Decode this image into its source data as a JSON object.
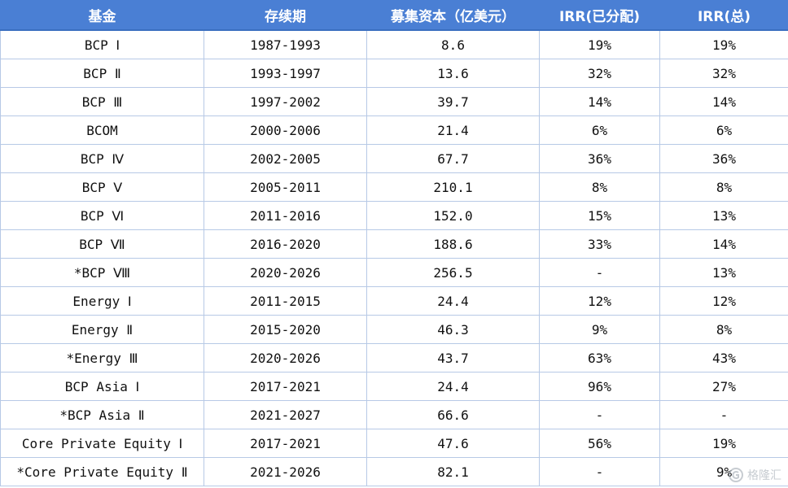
{
  "table": {
    "headers": [
      "基金",
      "存续期",
      "募集资本（亿美元）",
      "IRR(已分配)",
      "IRR(总)"
    ],
    "rows": [
      [
        "BCP Ⅰ",
        "1987-1993",
        "8.6",
        "19%",
        "19%"
      ],
      [
        "BCP Ⅱ",
        "1993-1997",
        "13.6",
        "32%",
        "32%"
      ],
      [
        "BCP Ⅲ",
        "1997-2002",
        "39.7",
        "14%",
        "14%"
      ],
      [
        "BCOM",
        "2000-2006",
        "21.4",
        "6%",
        "6%"
      ],
      [
        "BCP Ⅳ",
        "2002-2005",
        "67.7",
        "36%",
        "36%"
      ],
      [
        "BCP Ⅴ",
        "2005-2011",
        "210.1",
        "8%",
        "8%"
      ],
      [
        "BCP Ⅵ",
        "2011-2016",
        "152.0",
        "15%",
        "13%"
      ],
      [
        "BCP Ⅶ",
        "2016-2020",
        "188.6",
        "33%",
        "14%"
      ],
      [
        "*BCP Ⅷ",
        "2020-2026",
        "256.5",
        "-",
        "13%"
      ],
      [
        "Energy Ⅰ",
        "2011-2015",
        "24.4",
        "12%",
        "12%"
      ],
      [
        "Energy Ⅱ",
        "2015-2020",
        "46.3",
        "9%",
        "8%"
      ],
      [
        "*Energy Ⅲ",
        "2020-2026",
        "43.7",
        "63%",
        "43%"
      ],
      [
        "BCP Asia Ⅰ",
        "2017-2021",
        "24.4",
        "96%",
        "27%"
      ],
      [
        "*BCP Asia Ⅱ",
        "2021-2027",
        "66.6",
        "-",
        "-"
      ],
      [
        "Core Private Equity Ⅰ",
        "2017-2021",
        "47.6",
        "56%",
        "19%"
      ],
      [
        "*Core Private Equity Ⅱ",
        "2021-2026",
        "82.1",
        "-",
        "9%"
      ]
    ]
  },
  "watermark": {
    "text": "格隆汇",
    "icon": "gelonghui-logo-icon"
  },
  "colors": {
    "header_bg": "#4a7fd4",
    "header_text": "#ffffff",
    "grid": "#b7c9e6"
  }
}
